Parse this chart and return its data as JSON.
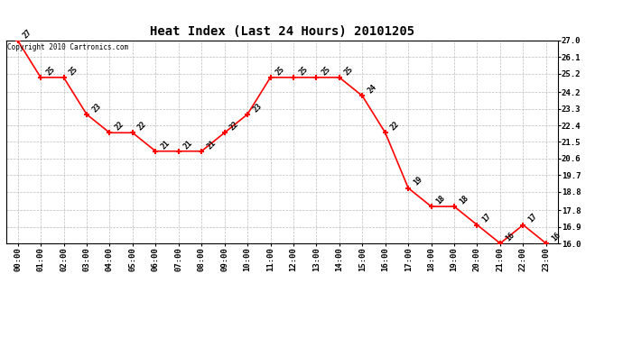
{
  "title": "Heat Index (Last 24 Hours) 20101205",
  "copyright_text": "Copyright 2010 Cartronics.com",
  "hours": [
    "00:00",
    "01:00",
    "02:00",
    "03:00",
    "04:00",
    "05:00",
    "06:00",
    "07:00",
    "08:00",
    "09:00",
    "10:00",
    "11:00",
    "12:00",
    "13:00",
    "14:00",
    "15:00",
    "16:00",
    "17:00",
    "18:00",
    "19:00",
    "20:00",
    "21:00",
    "22:00",
    "23:00"
  ],
  "values": [
    27,
    25,
    25,
    23,
    22,
    22,
    21,
    21,
    21,
    22,
    23,
    25,
    25,
    25,
    25,
    24,
    22,
    19,
    18,
    18,
    17,
    16,
    17,
    16
  ],
  "line_color": "#ff0000",
  "marker_color": "#ff0000",
  "bg_color": "#ffffff",
  "grid_color": "#bbbbbb",
  "ylim_min": 16.0,
  "ylim_max": 27.0,
  "yticks": [
    16.0,
    16.9,
    17.8,
    18.8,
    19.7,
    20.6,
    21.5,
    22.4,
    23.3,
    24.2,
    25.2,
    26.1,
    27.0
  ],
  "label_fontsize": 6.5,
  "title_fontsize": 10,
  "annotation_fontsize": 6,
  "copyright_fontsize": 5.5
}
